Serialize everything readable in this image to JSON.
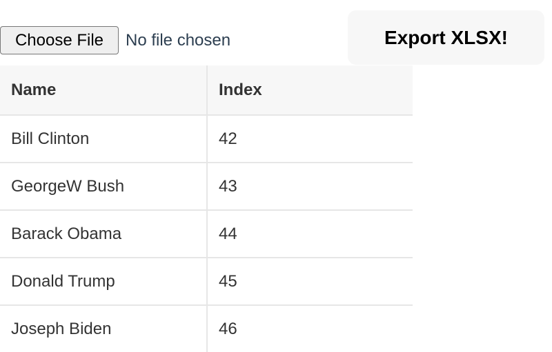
{
  "file_input": {
    "button_label": "Choose File",
    "status": "No file chosen"
  },
  "export_button": "Export XLSX!",
  "table": {
    "headers": [
      "Name",
      "Index"
    ],
    "rows": [
      [
        "Bill Clinton",
        "42"
      ],
      [
        "GeorgeW Bush",
        "43"
      ],
      [
        "Barack Obama",
        "44"
      ],
      [
        "Donald Trump",
        "45"
      ],
      [
        "Joseph Biden",
        "46"
      ]
    ]
  }
}
